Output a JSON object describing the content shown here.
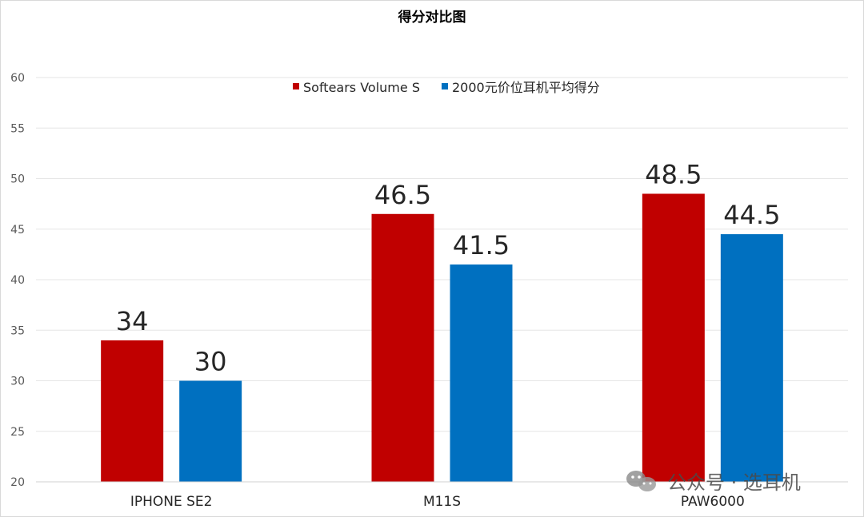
{
  "watermark": {
    "text": "公众号 · 选耳机",
    "icon": "wechat-icon"
  },
  "chart_data": {
    "type": "bar",
    "title": "得分对比图",
    "categories": [
      "IPHONE SE2",
      "M11S",
      "PAW6000"
    ],
    "series": [
      {
        "name": "Softears Volume S",
        "values": [
          34,
          46.5,
          48.5
        ],
        "color": "#c00000"
      },
      {
        "name": "2000元价位耳机平均得分",
        "values": [
          30,
          41.5,
          44.5
        ],
        "color": "#0070c0"
      }
    ],
    "ylim": [
      20,
      60
    ],
    "yticks": [
      20,
      25,
      30,
      35,
      40,
      45,
      50,
      55,
      60
    ],
    "xlabel": "",
    "ylabel": "",
    "grid": true,
    "legend": "top-center",
    "data_labels": true
  }
}
